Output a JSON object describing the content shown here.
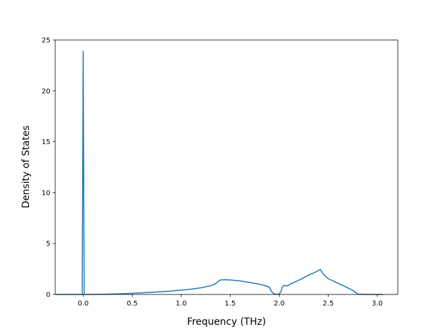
{
  "chart_data": {
    "type": "line",
    "title": "",
    "xlabel": "Frequency (THz)",
    "ylabel": "Density of States",
    "xlim": [
      -0.285,
      3.21
    ],
    "ylim": [
      0,
      25
    ],
    "x_ticks": [
      0.0,
      0.5,
      1.0,
      1.5,
      2.0,
      2.5,
      3.0
    ],
    "x_tick_labels": [
      "0.0",
      "0.5",
      "1.0",
      "1.5",
      "2.0",
      "2.5",
      "3.0"
    ],
    "y_ticks": [
      0,
      5,
      10,
      15,
      20,
      25
    ],
    "y_tick_labels": [
      "0",
      "5",
      "10",
      "15",
      "20",
      "25"
    ],
    "grid": false,
    "line_color": "#1f77b4",
    "series": [
      {
        "x": [
          -0.28,
          -0.02,
          -0.01,
          0.0,
          0.01,
          0.02,
          0.03,
          0.04,
          0.1,
          0.2,
          0.3,
          0.4,
          0.5,
          0.6,
          0.7,
          0.8,
          0.9,
          1.0,
          1.1,
          1.2,
          1.3,
          1.35,
          1.38,
          1.4,
          1.45,
          1.5,
          1.55,
          1.6,
          1.7,
          1.8,
          1.85,
          1.88,
          1.9,
          1.92,
          1.95,
          1.98,
          2.0,
          2.02,
          2.03,
          2.05,
          2.08,
          2.1,
          2.2,
          2.3,
          2.35,
          2.4,
          2.42,
          2.45,
          2.5,
          2.6,
          2.7,
          2.75,
          2.78,
          2.8,
          2.9,
          3.0,
          3.06
        ],
        "y": [
          0,
          0,
          0,
          23.9,
          0,
          0,
          0,
          0,
          0.01,
          0.02,
          0.04,
          0.07,
          0.11,
          0.16,
          0.21,
          0.27,
          0.34,
          0.42,
          0.52,
          0.65,
          0.85,
          1.05,
          1.3,
          1.42,
          1.45,
          1.42,
          1.38,
          1.33,
          1.18,
          1.0,
          0.88,
          0.78,
          0.72,
          0.3,
          0.05,
          0.02,
          0.05,
          0.3,
          0.7,
          0.9,
          0.82,
          0.95,
          1.4,
          1.9,
          2.1,
          2.35,
          2.45,
          2.0,
          1.55,
          1.1,
          0.65,
          0.4,
          0.2,
          0.03,
          0,
          0,
          0
        ]
      }
    ]
  }
}
